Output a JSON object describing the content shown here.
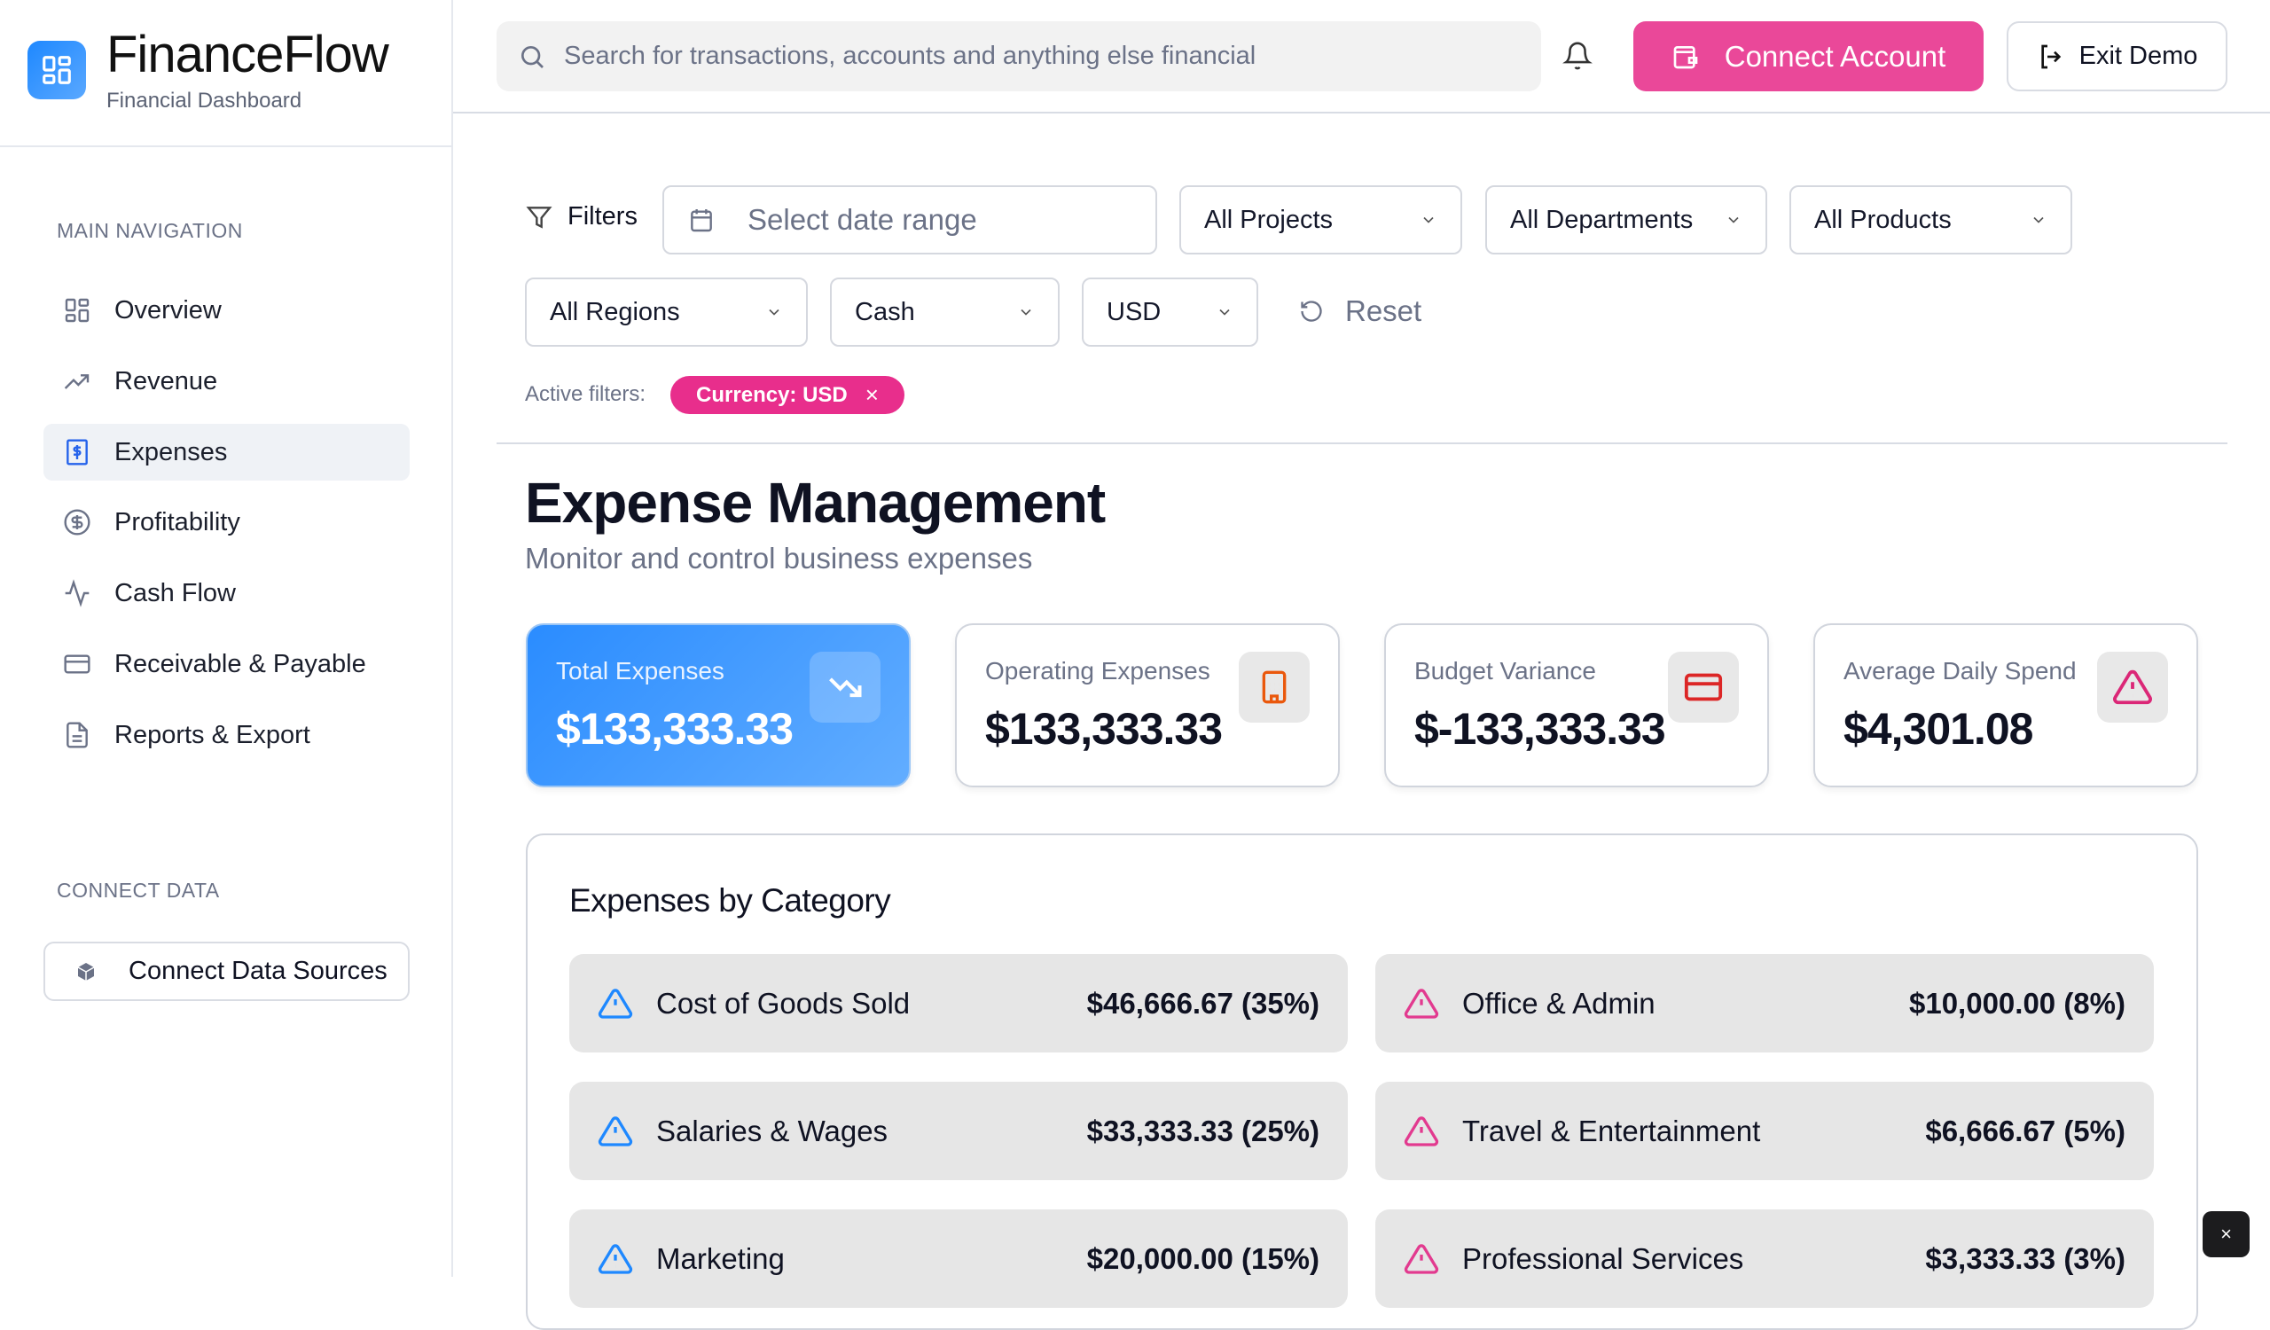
{
  "app": {
    "title": "FinanceFlow",
    "subtitle": "Financial Dashboard"
  },
  "sidebar": {
    "main_nav_heading": "MAIN NAVIGATION",
    "items": [
      {
        "label": "Overview",
        "icon": "grid-icon"
      },
      {
        "label": "Revenue",
        "icon": "trending-up-icon"
      },
      {
        "label": "Expenses",
        "icon": "receipt-dollar-icon",
        "active": true
      },
      {
        "label": "Profitability",
        "icon": "dollar-circle-icon"
      },
      {
        "label": "Cash Flow",
        "icon": "activity-icon"
      },
      {
        "label": "Receivable & Payable",
        "icon": "credit-card-icon"
      },
      {
        "label": "Reports & Export",
        "icon": "file-text-icon"
      }
    ],
    "connect_heading": "CONNECT DATA",
    "connect_button": "Connect Data Sources"
  },
  "header": {
    "search_placeholder": "Search for transactions, accounts and anything else financial",
    "connect_account": "Connect Account",
    "exit_demo": "Exit Demo"
  },
  "filters": {
    "label": "Filters",
    "date_placeholder": "Select date range",
    "projects": "All Projects",
    "departments": "All Departments",
    "products": "All Products",
    "regions": "All Regions",
    "account_type": "Cash",
    "currency": "USD",
    "reset": "Reset",
    "active_label": "Active filters:",
    "active_chip": "Currency: USD"
  },
  "page": {
    "title": "Expense Management",
    "subtitle": "Monitor and control business expenses"
  },
  "cards": [
    {
      "label": "Total Expenses",
      "value": "$133,333.33",
      "icon": "trending-down-icon"
    },
    {
      "label": "Operating Expenses",
      "value": "$133,333.33",
      "icon": "building-icon",
      "color": "#ea580c"
    },
    {
      "label": "Budget Variance",
      "value": "$-133,333.33",
      "icon": "credit-card-icon",
      "color": "#dc2626"
    },
    {
      "label": "Average Daily Spend",
      "value": "$4,301.08",
      "icon": "alert-triangle-icon",
      "color": "#db2777"
    }
  ],
  "categories": {
    "title": "Expenses by Category",
    "items": [
      {
        "name": "Cost of Goods Sold",
        "amount": "$46,666.67 (35%)",
        "color": "#1e88ff"
      },
      {
        "name": "Office & Admin",
        "amount": "$10,000.00 (8%)",
        "color": "#e23a8f"
      },
      {
        "name": "Salaries & Wages",
        "amount": "$33,333.33 (25%)",
        "color": "#1e88ff"
      },
      {
        "name": "Travel & Entertainment",
        "amount": "$6,666.67 (5%)",
        "color": "#e23a8f"
      },
      {
        "name": "Marketing",
        "amount": "$20,000.00 (15%)",
        "color": "#1e88ff"
      },
      {
        "name": "Professional Services",
        "amount": "$3,333.33 (3%)",
        "color": "#e23a8f"
      }
    ]
  },
  "floating_close": "×"
}
